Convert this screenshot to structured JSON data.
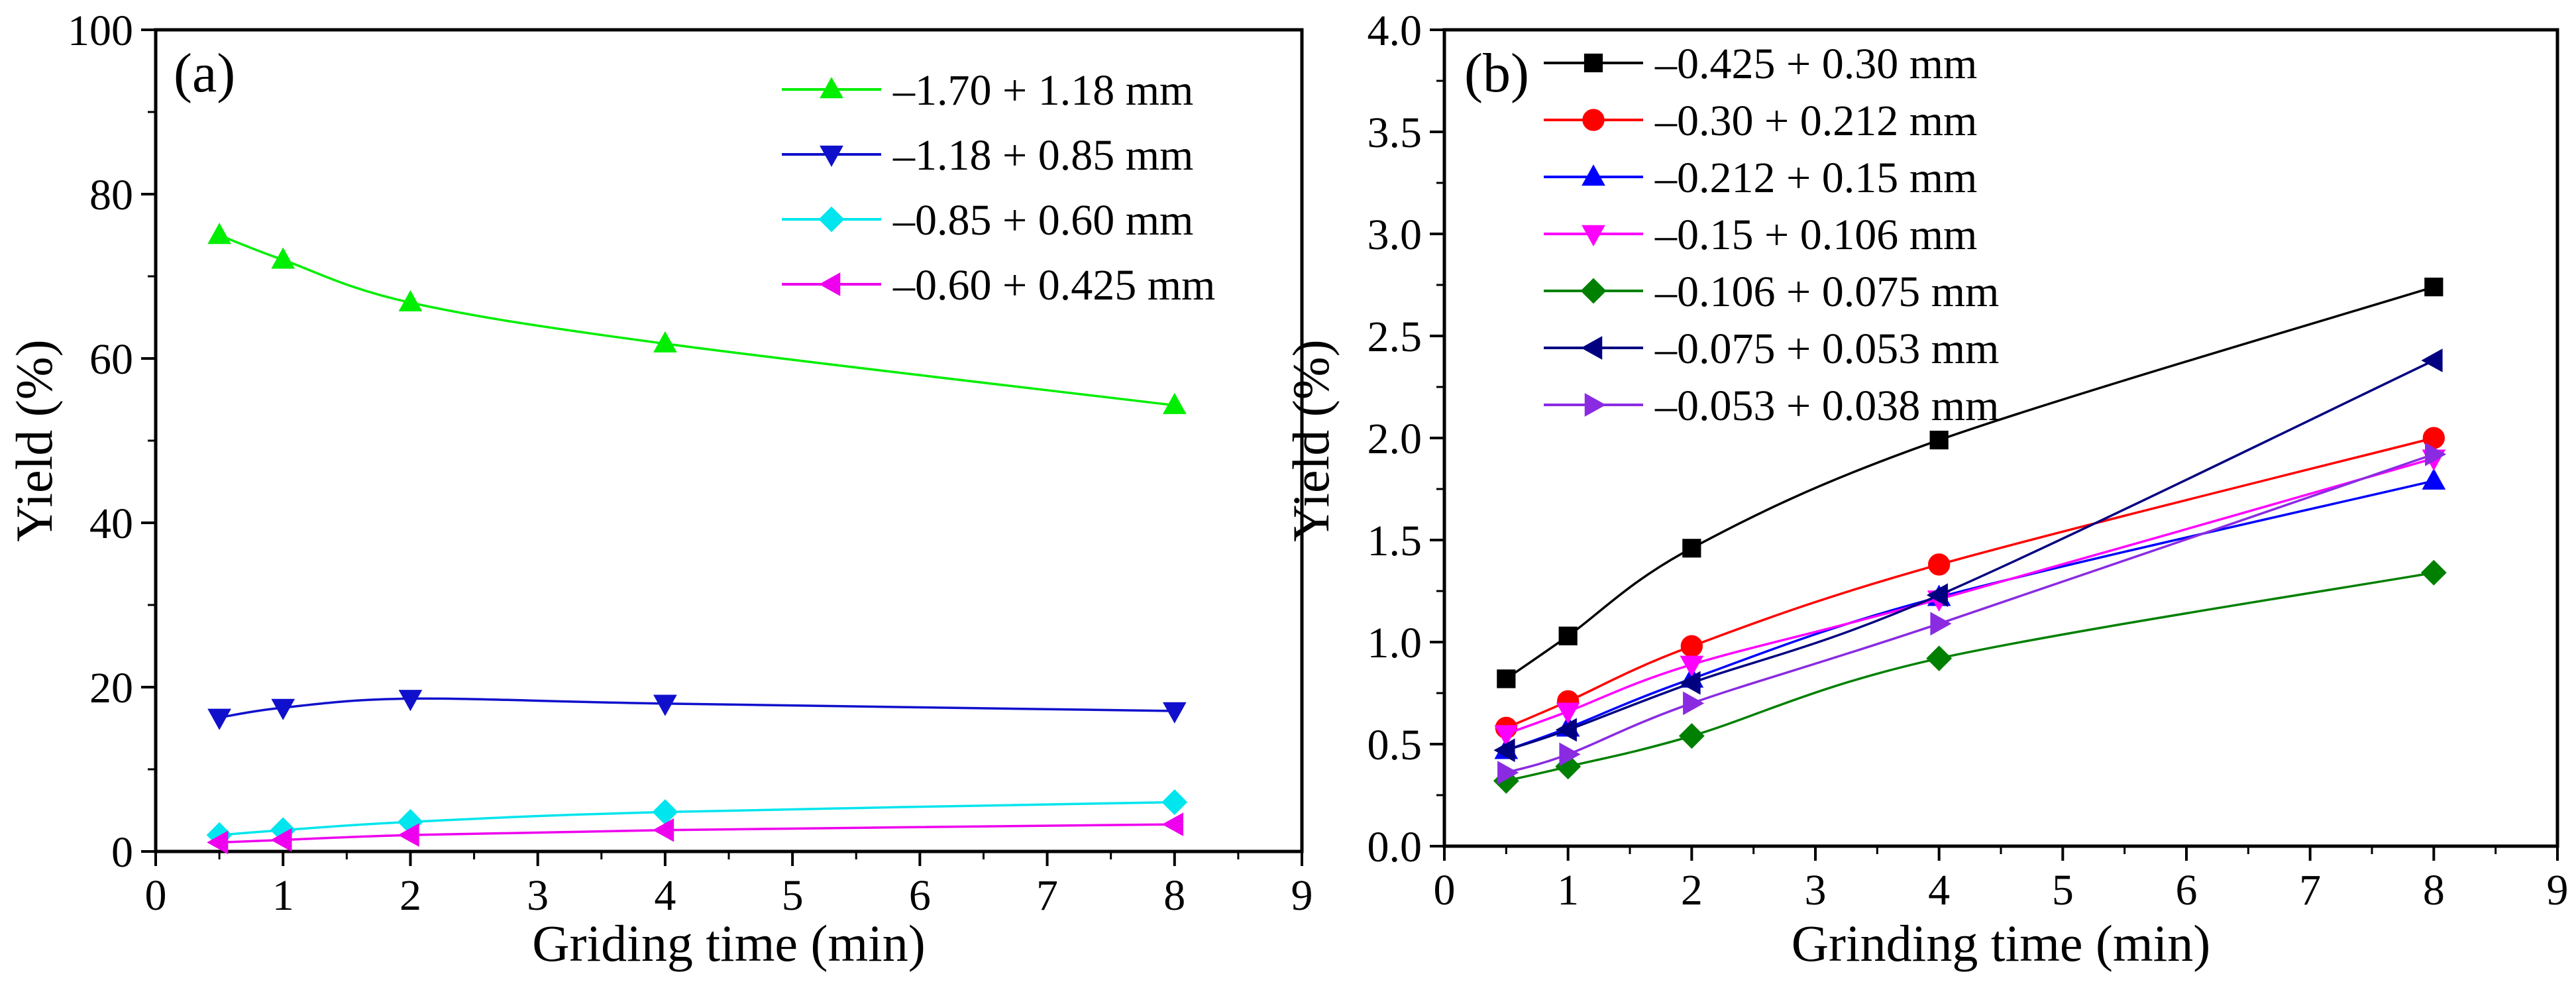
{
  "chart_data": [
    {
      "type": "line",
      "panel_label": "(a)",
      "xlabel": "Griding time (min)",
      "ylabel": "Yield (%)",
      "xlim": [
        0,
        9
      ],
      "ylim": [
        0,
        100
      ],
      "xticks": [
        "0",
        "1",
        "2",
        "3",
        "4",
        "5",
        "6",
        "7",
        "8",
        "9"
      ],
      "yticks": [
        "0",
        "20",
        "40",
        "60",
        "80",
        "100"
      ],
      "x": [
        0.5,
        1,
        2,
        4,
        8
      ],
      "legend_position": "top-right",
      "series": [
        {
          "name": "–1.70 + 1.18 mm",
          "color": "#00ee00",
          "marker": "triangle-up",
          "values": [
            75.0,
            72.0,
            66.8,
            61.8,
            54.3
          ]
        },
        {
          "name": "–1.18 + 0.85 mm",
          "color": "#1010cc",
          "marker": "triangle-down",
          "values": [
            16.3,
            17.5,
            18.6,
            18.0,
            17.1
          ]
        },
        {
          "name": "–0.85 + 0.60 mm",
          "color": "#00e5ee",
          "marker": "diamond",
          "values": [
            2.0,
            2.6,
            3.6,
            4.8,
            6.0
          ]
        },
        {
          "name": "–0.60 + 0.425 mm",
          "color": "#ee00ee",
          "marker": "triangle-left",
          "values": [
            1.1,
            1.4,
            2.0,
            2.6,
            3.3
          ]
        }
      ]
    },
    {
      "type": "line",
      "panel_label": "(b)",
      "xlabel": "Grinding time (min)",
      "ylabel": "Yield (%)",
      "xlim": [
        0,
        9
      ],
      "ylim": [
        0,
        4
      ],
      "xticks": [
        "0",
        "1",
        "2",
        "3",
        "4",
        "5",
        "6",
        "7",
        "8",
        "9"
      ],
      "yticks": [
        "0.0",
        "0.5",
        "1.0",
        "1.5",
        "2.0",
        "2.5",
        "3.0",
        "3.5",
        "4.0"
      ],
      "x": [
        0.5,
        1,
        2,
        4,
        8
      ],
      "legend_position": "top-left",
      "series": [
        {
          "name": "–0.425 + 0.30 mm",
          "color": "#000000",
          "marker": "square",
          "values": [
            0.82,
            1.03,
            1.46,
            1.99,
            2.74
          ]
        },
        {
          "name": "–0.30 + 0.212 mm",
          "color": "#ff0000",
          "marker": "circle",
          "values": [
            0.58,
            0.71,
            0.98,
            1.38,
            2.0
          ]
        },
        {
          "name": "–0.212 + 0.15 mm",
          "color": "#0000ff",
          "marker": "triangle-up",
          "values": [
            0.47,
            0.58,
            0.82,
            1.22,
            1.79
          ]
        },
        {
          "name": "–0.15 + 0.106 mm",
          "color": "#ff00ff",
          "marker": "triangle-down",
          "values": [
            0.55,
            0.66,
            0.89,
            1.21,
            1.9
          ]
        },
        {
          "name": "–0.106 + 0.075 mm",
          "color": "#008000",
          "marker": "diamond",
          "values": [
            0.32,
            0.39,
            0.54,
            0.92,
            1.34
          ]
        },
        {
          "name": "–0.075 + 0.053 mm",
          "color": "#000080",
          "marker": "triangle-left",
          "values": [
            0.47,
            0.57,
            0.8,
            1.23,
            2.38
          ]
        },
        {
          "name": "–0.053 + 0.038 mm",
          "color": "#8a2be2",
          "marker": "triangle-right",
          "values": [
            0.36,
            0.45,
            0.7,
            1.09,
            1.92
          ]
        }
      ]
    }
  ]
}
